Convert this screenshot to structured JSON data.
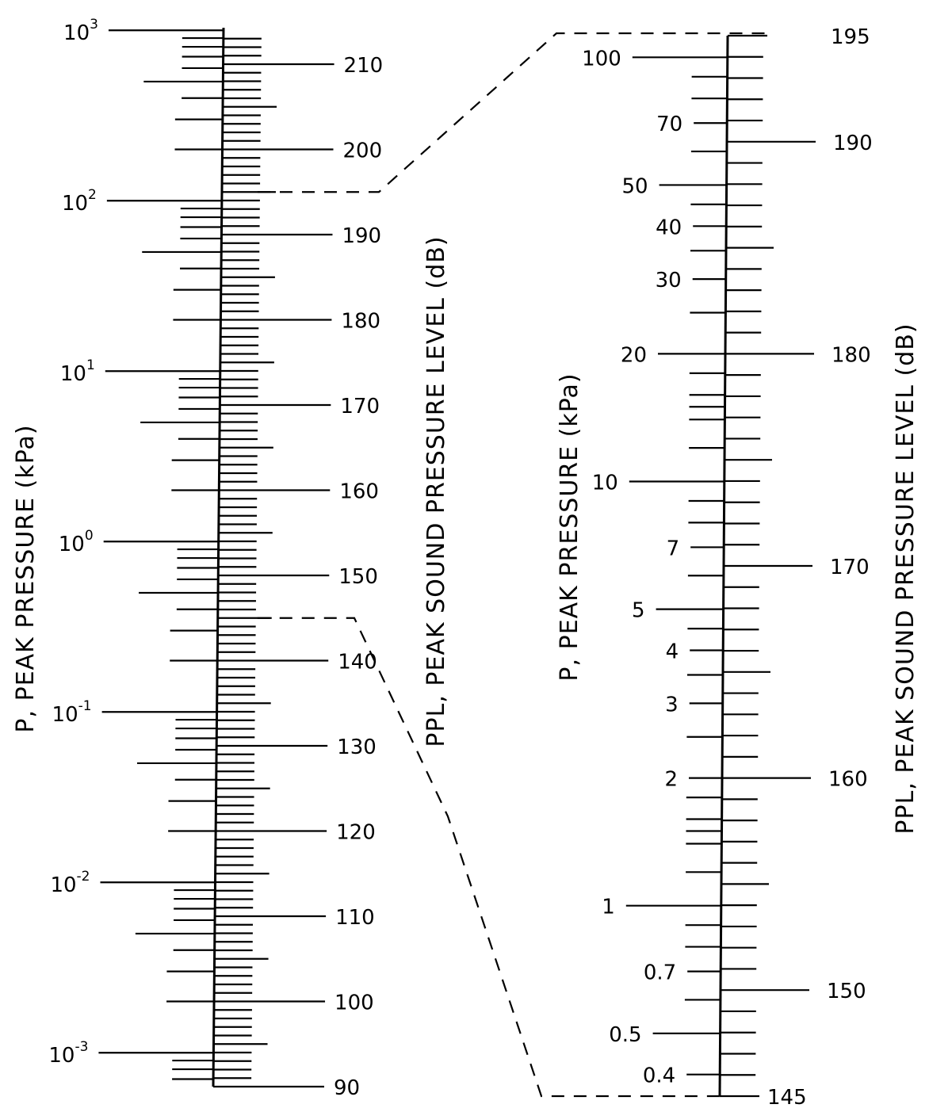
{
  "chart_data": {
    "type": "nomogram",
    "scales": [
      {
        "id": "left",
        "pressure_title": "P,  PEAK PRESSURE (kPa)",
        "spl_title": "PPL,  PEAK SOUND PRESSURE LEVEL (dB)",
        "pressure_range_kpa": [
          0.0002,
          1000
        ],
        "pressure_log_scale": true,
        "pressure_labels": [
          {
            "base": "10",
            "exp": "3",
            "value": 1000
          },
          {
            "base": "10",
            "exp": "2",
            "value": 100
          },
          {
            "base": "10",
            "exp": "1",
            "value": 10
          },
          {
            "base": "10",
            "exp": "0",
            "value": 1
          },
          {
            "base": "10",
            "exp": "-1",
            "value": 0.1
          },
          {
            "base": "10",
            "exp": "-2",
            "value": 0.01
          },
          {
            "base": "10",
            "exp": "-3",
            "value": 0.001
          }
        ],
        "spl_range_db": [
          80,
          214
        ],
        "spl_labels": [
          {
            "text": "210",
            "value": 210
          },
          {
            "text": "200",
            "value": 200
          },
          {
            "text": "190",
            "value": 190
          },
          {
            "text": "180",
            "value": 180
          },
          {
            "text": "170",
            "value": 170
          },
          {
            "text": "160",
            "value": 160
          },
          {
            "text": "150",
            "value": 150
          },
          {
            "text": "140",
            "value": 140
          },
          {
            "text": "130",
            "value": 130
          },
          {
            "text": "120",
            "value": 120
          },
          {
            "text": "110",
            "value": 110
          },
          {
            "text": "100",
            "value": 100
          },
          {
            "text": "90",
            "value": 90
          }
        ]
      },
      {
        "id": "right",
        "pressure_title": "P,  PEAK PRESSURE (kPa)",
        "spl_title": "PPL,  PEAK SOUND PRESSURE LEVEL (dB)",
        "pressure_range_kpa": [
          0.36,
          112
        ],
        "pressure_log_scale": true,
        "pressure_labels": [
          {
            "text": "100",
            "value": 100
          },
          {
            "text": "70",
            "value": 70
          },
          {
            "text": "50",
            "value": 50
          },
          {
            "text": "40",
            "value": 40
          },
          {
            "text": "30",
            "value": 30
          },
          {
            "text": "20",
            "value": 20
          },
          {
            "text": "10",
            "value": 10
          },
          {
            "text": "7",
            "value": 7
          },
          {
            "text": "5",
            "value": 5
          },
          {
            "text": "4",
            "value": 4
          },
          {
            "text": "3",
            "value": 3
          },
          {
            "text": "2",
            "value": 2
          },
          {
            "text": "1",
            "value": 1
          },
          {
            "text": "0.7",
            "value": 0.7
          },
          {
            "text": "0.5",
            "value": 0.5
          },
          {
            "text": "0.4",
            "value": 0.4
          }
        ],
        "spl_range_db": [
          145,
          195
        ],
        "spl_labels": [
          {
            "text": "195",
            "value": 195
          },
          {
            "text": "190",
            "value": 190
          },
          {
            "text": "180",
            "value": 180
          },
          {
            "text": "170",
            "value": 170
          },
          {
            "text": "160",
            "value": 160
          },
          {
            "text": "150",
            "value": 150
          },
          {
            "text": "145",
            "value": 145
          }
        ]
      }
    ],
    "expanded_range_db": [
      145,
      195
    ]
  }
}
